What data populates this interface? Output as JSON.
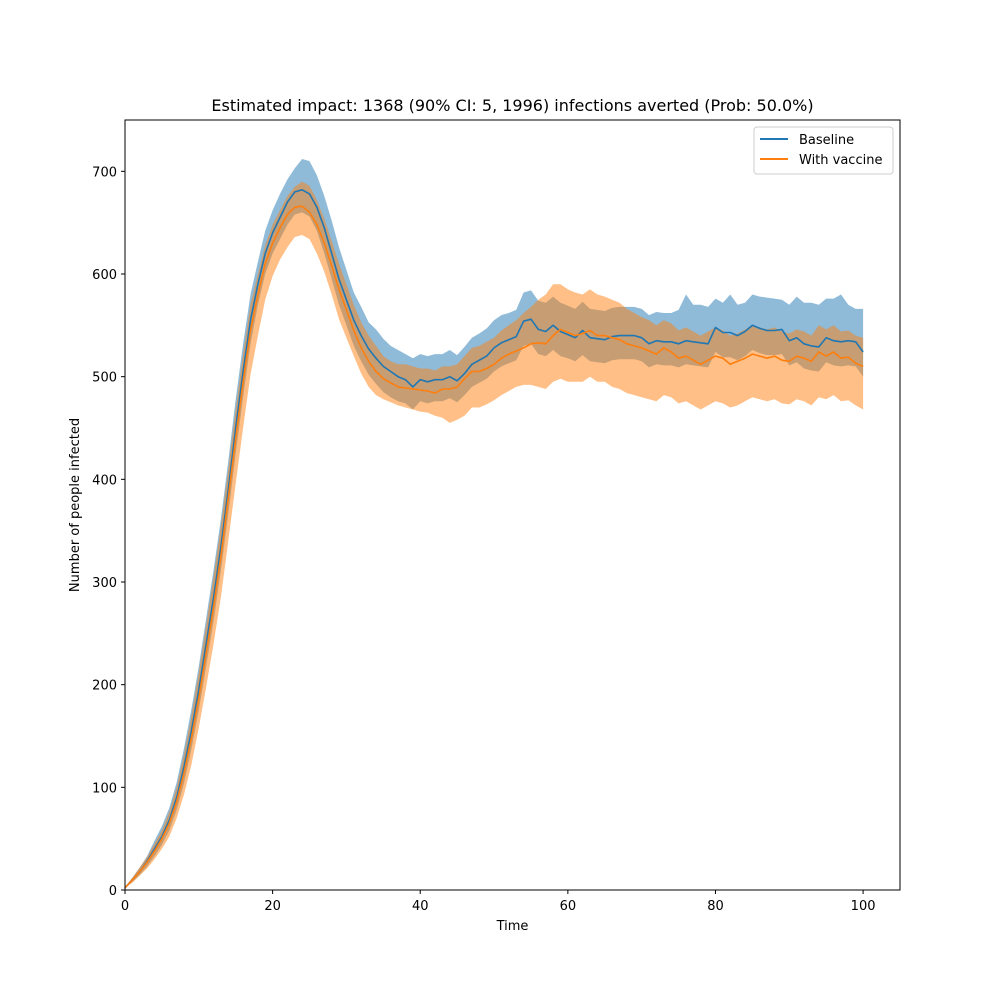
{
  "chart_data": {
    "type": "line",
    "title": "Estimated impact: 1368 (90% CI: 5, 1996) infections averted (Prob: 50.0%)",
    "xlabel": "Time",
    "ylabel": "Number of people infected",
    "xlim": [
      0,
      105
    ],
    "ylim": [
      0,
      750
    ],
    "xticks": [
      0,
      20,
      40,
      60,
      80,
      100
    ],
    "yticks": [
      0,
      100,
      200,
      300,
      400,
      500,
      600,
      700
    ],
    "grid": false,
    "legend_position": "top-right",
    "series": [
      {
        "name": "Baseline",
        "color": "#1f77b4",
        "band_color": "#1f77b4",
        "x": [
          0,
          1,
          2,
          3,
          4,
          5,
          6,
          7,
          8,
          9,
          10,
          11,
          12,
          13,
          14,
          15,
          16,
          17,
          18,
          19,
          20,
          21,
          22,
          23,
          24,
          25,
          26,
          27,
          28,
          29,
          30,
          31,
          32,
          33,
          34,
          35,
          36,
          37,
          38,
          39,
          40,
          41,
          42,
          43,
          44,
          45,
          46,
          47,
          48,
          49,
          50,
          51,
          52,
          53,
          54,
          55,
          56,
          57,
          58,
          59,
          60,
          61,
          62,
          63,
          64,
          65,
          66,
          67,
          68,
          69,
          70,
          71,
          72,
          73,
          74,
          75,
          76,
          77,
          78,
          79,
          80,
          81,
          82,
          83,
          84,
          85,
          86,
          87,
          88,
          89,
          90,
          91,
          92,
          93,
          94,
          95,
          96,
          97,
          98,
          99,
          100
        ],
        "values": [
          2,
          10,
          18,
          28,
          40,
          52,
          68,
          90,
          120,
          155,
          195,
          240,
          285,
          335,
          390,
          450,
          505,
          555,
          590,
          620,
          640,
          655,
          670,
          680,
          682,
          678,
          665,
          645,
          620,
          595,
          575,
          555,
          540,
          527,
          518,
          510,
          505,
          500,
          497,
          490,
          497,
          495,
          497,
          497,
          500,
          496,
          503,
          512,
          516,
          520,
          528,
          533,
          536,
          539,
          554,
          556,
          546,
          544,
          550,
          544,
          541,
          538,
          545,
          538,
          537,
          536,
          539,
          540,
          540,
          540,
          538,
          532,
          535,
          534,
          534,
          532,
          535,
          534,
          533,
          532,
          548,
          543,
          543,
          540,
          544,
          550,
          547,
          545,
          545,
          546,
          535,
          538,
          532,
          530,
          529,
          538,
          535,
          534,
          535,
          534,
          524
        ],
        "lower": [
          2,
          8,
          15,
          23,
          33,
          44,
          58,
          78,
          104,
          137,
          175,
          218,
          262,
          312,
          366,
          425,
          480,
          532,
          570,
          600,
          620,
          634,
          648,
          658,
          660,
          656,
          642,
          620,
          595,
          570,
          550,
          530,
          515,
          502,
          493,
          485,
          480,
          476,
          474,
          468,
          476,
          474,
          476,
          476,
          479,
          475,
          482,
          490,
          494,
          498,
          505,
          510,
          513,
          516,
          530,
          532,
          522,
          520,
          526,
          520,
          518,
          515,
          521,
          515,
          514,
          513,
          516,
          517,
          517,
          517,
          515,
          509,
          512,
          511,
          511,
          509,
          512,
          511,
          510,
          509,
          524,
          519,
          519,
          516,
          520,
          526,
          523,
          521,
          521,
          522,
          511,
          514,
          508,
          506,
          505,
          514,
          511,
          510,
          511,
          510,
          500
        ],
        "upper": [
          3,
          12,
          22,
          33,
          48,
          62,
          80,
          105,
          138,
          176,
          218,
          265,
          312,
          362,
          418,
          478,
          532,
          580,
          612,
          642,
          662,
          678,
          692,
          703,
          712,
          710,
          696,
          676,
          652,
          626,
          604,
          582,
          568,
          553,
          546,
          537,
          530,
          526,
          522,
          518,
          522,
          520,
          522,
          522,
          526,
          521,
          529,
          538,
          542,
          547,
          555,
          560,
          562,
          565,
          582,
          584,
          574,
          572,
          578,
          572,
          569,
          566,
          573,
          566,
          565,
          564,
          567,
          568,
          568,
          568,
          566,
          560,
          563,
          562,
          562,
          565,
          580,
          570,
          570,
          568,
          576,
          572,
          580,
          570,
          572,
          580,
          578,
          577,
          576,
          575,
          570,
          578,
          572,
          572,
          570,
          576,
          576,
          580,
          570,
          566,
          566
        ]
      },
      {
        "name": "With vaccine",
        "color": "#ff7f0e",
        "band_color": "#ff7f0e",
        "x": [
          0,
          1,
          2,
          3,
          4,
          5,
          6,
          7,
          8,
          9,
          10,
          11,
          12,
          13,
          14,
          15,
          16,
          17,
          18,
          19,
          20,
          21,
          22,
          23,
          24,
          25,
          26,
          27,
          28,
          29,
          30,
          31,
          32,
          33,
          34,
          35,
          36,
          37,
          38,
          39,
          40,
          41,
          42,
          43,
          44,
          45,
          46,
          47,
          48,
          49,
          50,
          51,
          52,
          53,
          54,
          55,
          56,
          57,
          58,
          59,
          60,
          61,
          62,
          63,
          64,
          65,
          66,
          67,
          68,
          69,
          70,
          71,
          72,
          73,
          74,
          75,
          76,
          77,
          78,
          79,
          80,
          81,
          82,
          83,
          84,
          85,
          86,
          87,
          88,
          89,
          90,
          91,
          92,
          93,
          94,
          95,
          96,
          97,
          98,
          99,
          100
        ],
        "values": [
          2,
          10,
          18,
          27,
          38,
          50,
          65,
          86,
          114,
          148,
          187,
          231,
          276,
          326,
          382,
          440,
          495,
          545,
          580,
          610,
          630,
          645,
          658,
          665,
          666,
          660,
          648,
          630,
          608,
          585,
          565,
          545,
          528,
          515,
          505,
          498,
          494,
          490,
          489,
          488,
          487,
          486,
          484,
          488,
          488,
          490,
          498,
          505,
          505,
          508,
          512,
          518,
          522,
          525,
          528,
          532,
          533,
          532,
          540,
          546,
          543,
          540,
          542,
          545,
          540,
          540,
          538,
          536,
          532,
          530,
          528,
          525,
          522,
          528,
          524,
          518,
          520,
          516,
          512,
          516,
          520,
          518,
          512,
          515,
          518,
          522,
          520,
          518,
          520,
          516,
          515,
          520,
          518,
          515,
          524,
          520,
          524,
          518,
          519,
          513,
          510
        ],
        "lower": [
          2,
          7,
          14,
          21,
          30,
          40,
          52,
          70,
          93,
          122,
          158,
          198,
          240,
          286,
          340,
          396,
          450,
          502,
          540,
          575,
          598,
          614,
          626,
          636,
          638,
          634,
          620,
          602,
          580,
          556,
          538,
          520,
          503,
          490,
          482,
          478,
          475,
          472,
          470,
          468,
          466,
          465,
          462,
          460,
          455,
          458,
          462,
          470,
          470,
          473,
          477,
          482,
          486,
          490,
          492,
          492,
          490,
          488,
          495,
          498,
          495,
          495,
          495,
          500,
          495,
          495,
          490,
          488,
          484,
          482,
          480,
          478,
          476,
          482,
          480,
          474,
          476,
          472,
          468,
          472,
          476,
          474,
          470,
          472,
          476,
          480,
          478,
          476,
          478,
          474,
          473,
          478,
          476,
          472,
          480,
          478,
          482,
          476,
          477,
          472,
          468
        ],
        "upper": [
          3,
          12,
          22,
          32,
          45,
          58,
          76,
          100,
          132,
          169,
          212,
          258,
          305,
          355,
          410,
          468,
          522,
          570,
          600,
          628,
          648,
          662,
          676,
          685,
          690,
          686,
          672,
          654,
          632,
          610,
          590,
          570,
          553,
          540,
          530,
          520,
          515,
          512,
          512,
          510,
          508,
          508,
          506,
          510,
          510,
          512,
          520,
          528,
          530,
          534,
          538,
          545,
          550,
          555,
          562,
          568,
          575,
          580,
          590,
          590,
          585,
          582,
          580,
          585,
          580,
          578,
          575,
          572,
          566,
          562,
          558,
          555,
          550,
          555,
          552,
          545,
          548,
          544,
          540,
          544,
          548,
          545,
          540,
          542,
          546,
          550,
          548,
          546,
          548,
          544,
          542,
          546,
          544,
          540,
          550,
          546,
          550,
          544,
          545,
          540,
          538
        ]
      }
    ]
  }
}
